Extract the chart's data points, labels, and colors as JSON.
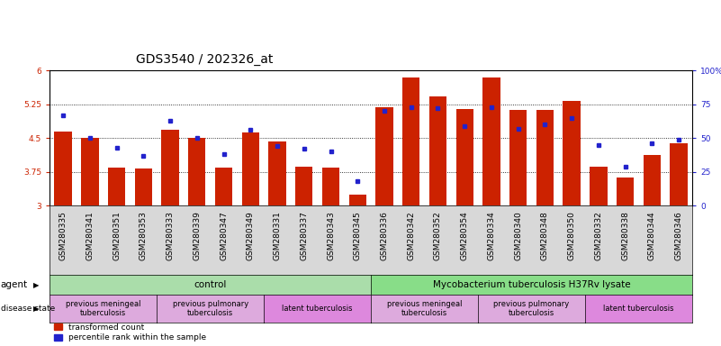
{
  "title": "GDS3540 / 202326_at",
  "samples": [
    "GSM280335",
    "GSM280341",
    "GSM280351",
    "GSM280353",
    "GSM280333",
    "GSM280339",
    "GSM280347",
    "GSM280349",
    "GSM280331",
    "GSM280337",
    "GSM280343",
    "GSM280345",
    "GSM280336",
    "GSM280342",
    "GSM280352",
    "GSM280354",
    "GSM280334",
    "GSM280340",
    "GSM280348",
    "GSM280350",
    "GSM280332",
    "GSM280338",
    "GSM280344",
    "GSM280346"
  ],
  "transformed_count": [
    4.65,
    4.51,
    3.84,
    3.83,
    4.68,
    4.51,
    3.85,
    4.62,
    4.42,
    3.87,
    3.84,
    3.25,
    5.19,
    5.85,
    5.42,
    5.14,
    5.85,
    5.13,
    5.13,
    5.33,
    3.87,
    3.62,
    4.12,
    4.38
  ],
  "percentile_rank": [
    67,
    50,
    43,
    37,
    63,
    50,
    38,
    56,
    44,
    42,
    40,
    18,
    70,
    73,
    72,
    59,
    73,
    57,
    60,
    65,
    45,
    29,
    46,
    49
  ],
  "bar_color": "#cc2200",
  "percentile_color": "#2222cc",
  "ylim_left": [
    3.0,
    6.0
  ],
  "ylim_right": [
    0,
    100
  ],
  "yticks_left": [
    3.0,
    3.75,
    4.5,
    5.25,
    6.0
  ],
  "yticks_right": [
    0,
    25,
    50,
    75,
    100
  ],
  "ytick_labels_left": [
    "3",
    "3.75",
    "4.5",
    "5.25",
    "6"
  ],
  "ytick_labels_right": [
    "0",
    "25",
    "50",
    "75",
    "100%"
  ],
  "agent_groups": [
    {
      "label": "control",
      "start": 0,
      "end": 12,
      "color": "#aaddaa"
    },
    {
      "label": "Mycobacterium tuberculosis H37Rv lysate",
      "start": 12,
      "end": 24,
      "color": "#88dd88"
    }
  ],
  "disease_groups": [
    {
      "label": "previous meningeal\ntuberculosis",
      "start": 0,
      "end": 4,
      "color": "#ddaadd"
    },
    {
      "label": "previous pulmonary\ntuberculosis",
      "start": 4,
      "end": 8,
      "color": "#ddaadd"
    },
    {
      "label": "latent tuberculosis",
      "start": 8,
      "end": 12,
      "color": "#dd88dd"
    },
    {
      "label": "previous meningeal\ntuberculosis",
      "start": 12,
      "end": 16,
      "color": "#ddaadd"
    },
    {
      "label": "previous pulmonary\ntuberculosis",
      "start": 16,
      "end": 20,
      "color": "#ddaadd"
    },
    {
      "label": "latent tuberculosis",
      "start": 20,
      "end": 24,
      "color": "#dd88dd"
    }
  ],
  "legend_items": [
    {
      "label": "transformed count",
      "color": "#cc2200"
    },
    {
      "label": "percentile rank within the sample",
      "color": "#2222cc"
    }
  ],
  "title_fontsize": 10,
  "tick_fontsize": 6.5,
  "label_fontsize": 7.5,
  "bar_width": 0.65,
  "background_color": "#ffffff",
  "grid_color": "#000000",
  "left_tick_color": "#cc2200",
  "right_tick_color": "#2222cc",
  "xtick_bg_color": "#d8d8d8"
}
